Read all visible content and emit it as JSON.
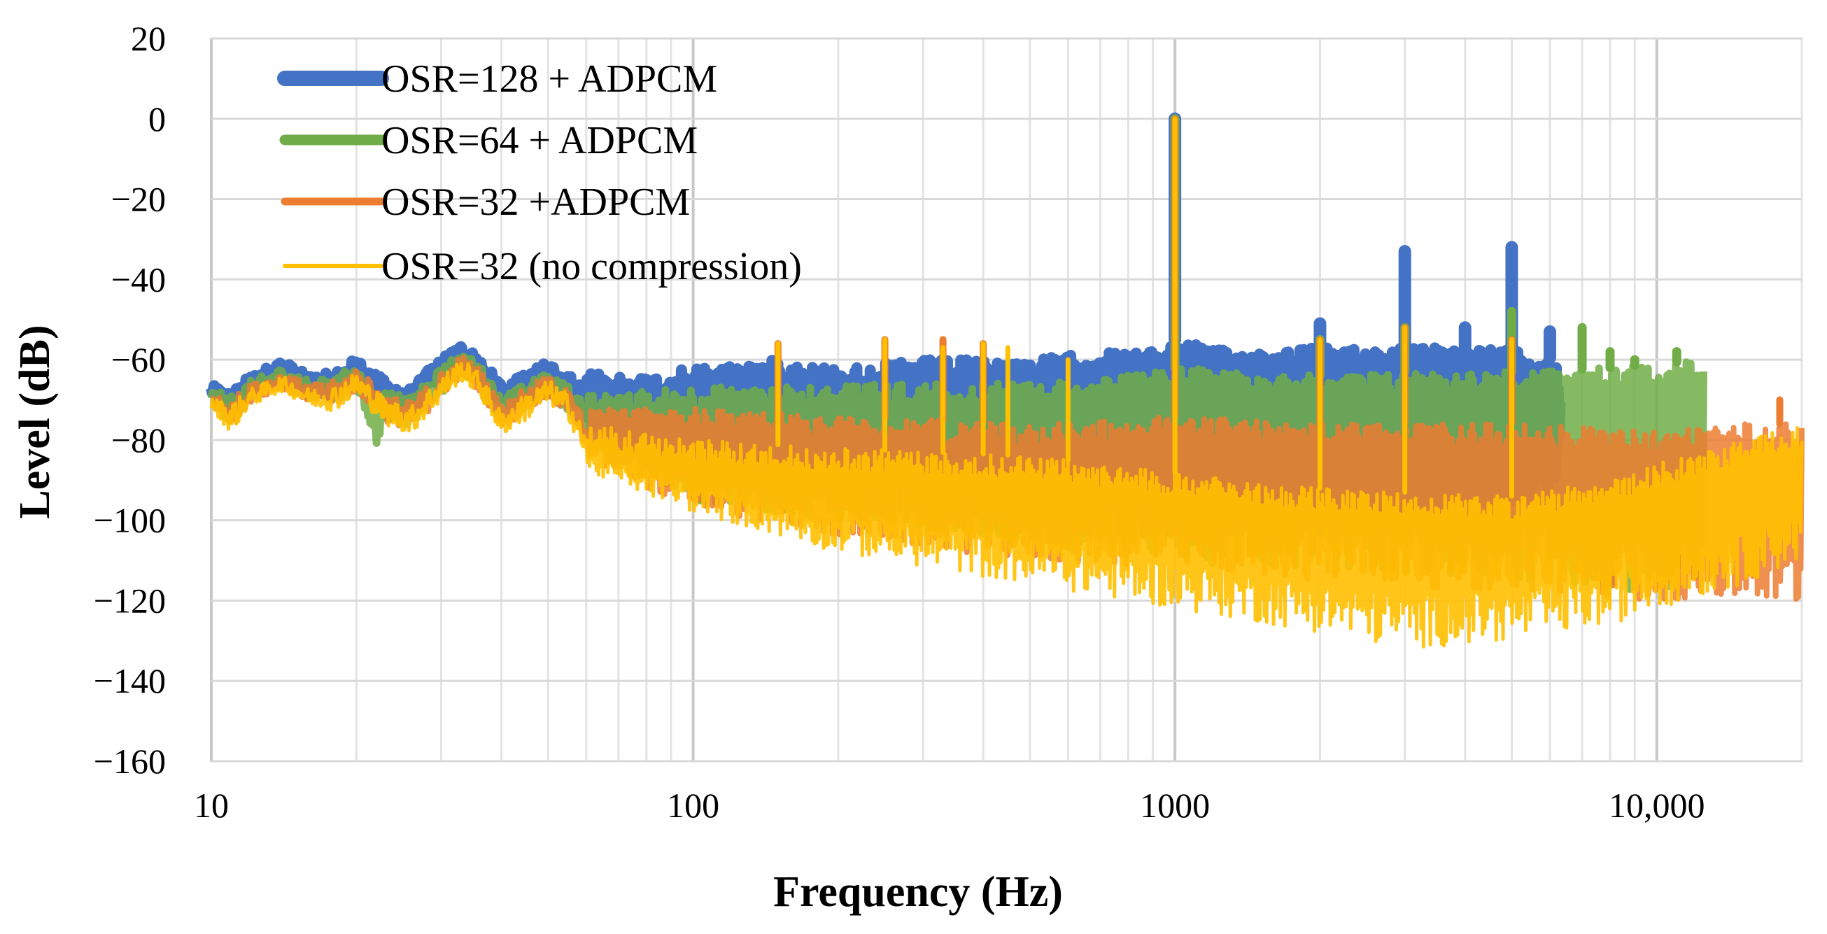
{
  "chart_data": {
    "type": "line",
    "title": "",
    "xlabel": "Frequency (Hz)",
    "ylabel": "Level (dB)",
    "xscale": "log",
    "xlim": [
      10,
      20000
    ],
    "ylim": [
      -160,
      20
    ],
    "x_ticks": [
      10,
      100,
      1000,
      10000
    ],
    "x_tick_labels": [
      "10",
      "100",
      "1000",
      "10,000"
    ],
    "y_ticks": [
      20,
      0,
      -20,
      -40,
      -60,
      -80,
      -100,
      -120,
      -140,
      -160
    ],
    "y_tick_labels": [
      "20",
      "0",
      "−20",
      "−40",
      "−60",
      "−80",
      "−100",
      "−120",
      "−140",
      "−160"
    ],
    "grid": true,
    "legend_position": "top-left",
    "series": [
      {
        "name": "OSR=128 + ADPCM",
        "color": "#4472C4",
        "envelope_upper": [
          [
            10,
            -65
          ],
          [
            11,
            -64
          ],
          [
            12,
            -62
          ],
          [
            14,
            -58
          ],
          [
            16,
            -62
          ],
          [
            18,
            -60
          ],
          [
            20,
            -57
          ],
          [
            23,
            -62
          ],
          [
            26,
            -64
          ],
          [
            29,
            -58
          ],
          [
            33,
            -53
          ],
          [
            36,
            -56
          ],
          [
            40,
            -63
          ],
          [
            46,
            -60
          ],
          [
            50,
            -57
          ],
          [
            55,
            -60
          ],
          [
            60,
            -63
          ],
          [
            80,
            -64
          ],
          [
            100,
            -62
          ],
          [
            150,
            -60
          ],
          [
            200,
            -62
          ],
          [
            300,
            -60
          ],
          [
            500,
            -60
          ],
          [
            700,
            -58
          ],
          [
            900,
            -58
          ],
          [
            1000,
            -55
          ],
          [
            1300,
            -58
          ],
          [
            1800,
            -57
          ],
          [
            2500,
            -57
          ],
          [
            3500,
            -57
          ],
          [
            5000,
            -57
          ],
          [
            6200,
            -60
          ],
          [
            6300,
            -66
          ]
        ],
        "envelope_lower": [
          [
            10,
            -70
          ],
          [
            11,
            -79
          ],
          [
            12,
            -70
          ],
          [
            14,
            -66
          ],
          [
            16,
            -70
          ],
          [
            18,
            -72
          ],
          [
            20,
            -67
          ],
          [
            23,
            -75
          ],
          [
            26,
            -76
          ],
          [
            29,
            -70
          ],
          [
            33,
            -64
          ],
          [
            36,
            -68
          ],
          [
            40,
            -76
          ],
          [
            46,
            -72
          ],
          [
            50,
            -70
          ],
          [
            55,
            -73
          ],
          [
            60,
            -76
          ],
          [
            80,
            -86
          ],
          [
            100,
            -90
          ],
          [
            150,
            -92
          ],
          [
            200,
            -96
          ],
          [
            300,
            -100
          ],
          [
            500,
            -103
          ],
          [
            700,
            -104
          ],
          [
            1000,
            -104
          ],
          [
            1500,
            -104
          ],
          [
            2000,
            -104
          ],
          [
            3000,
            -102
          ],
          [
            4000,
            -98
          ],
          [
            5000,
            -96
          ],
          [
            6200,
            -95
          ],
          [
            6300,
            -80
          ]
        ],
        "peaks": [
          [
            1000,
            0
          ],
          [
            2000,
            -51
          ],
          [
            3000,
            -33
          ],
          [
            4000,
            -52
          ],
          [
            5000,
            -32
          ],
          [
            6000,
            -53
          ]
        ]
      },
      {
        "name": "OSR=64 + ADPCM",
        "color": "#70AD47",
        "envelope_upper": [
          [
            10,
            -66
          ],
          [
            11,
            -65
          ],
          [
            12,
            -63
          ],
          [
            14,
            -60
          ],
          [
            16,
            -63
          ],
          [
            18,
            -61
          ],
          [
            20,
            -58
          ],
          [
            23,
            -64
          ],
          [
            26,
            -66
          ],
          [
            29,
            -60
          ],
          [
            33,
            -55
          ],
          [
            36,
            -58
          ],
          [
            40,
            -66
          ],
          [
            46,
            -62
          ],
          [
            50,
            -60
          ],
          [
            55,
            -63
          ],
          [
            60,
            -68
          ],
          [
            100,
            -67
          ],
          [
            200,
            -66
          ],
          [
            400,
            -66
          ],
          [
            700,
            -65
          ],
          [
            1000,
            -62
          ],
          [
            2000,
            -64
          ],
          [
            3000,
            -63
          ],
          [
            5000,
            -63
          ],
          [
            8000,
            -62
          ],
          [
            10000,
            -61
          ],
          [
            12500,
            -60
          ]
        ],
        "envelope_lower": [
          [
            10,
            -72
          ],
          [
            11,
            -80
          ],
          [
            12,
            -72
          ],
          [
            14,
            -68
          ],
          [
            16,
            -72
          ],
          [
            18,
            -74
          ],
          [
            20,
            -70
          ],
          [
            22,
            -88
          ],
          [
            23,
            -78
          ],
          [
            26,
            -80
          ],
          [
            29,
            -74
          ],
          [
            33,
            -66
          ],
          [
            36,
            -70
          ],
          [
            40,
            -78
          ],
          [
            46,
            -75
          ],
          [
            50,
            -72
          ],
          [
            55,
            -76
          ],
          [
            60,
            -82
          ],
          [
            100,
            -95
          ],
          [
            200,
            -100
          ],
          [
            400,
            -104
          ],
          [
            700,
            -108
          ],
          [
            1000,
            -110
          ],
          [
            2000,
            -113
          ],
          [
            4000,
            -114
          ],
          [
            7000,
            -116
          ],
          [
            10000,
            -118
          ],
          [
            12500,
            -118
          ]
        ],
        "peaks": [
          [
            1000,
            0
          ],
          [
            2000,
            -55
          ],
          [
            3000,
            -52
          ],
          [
            5000,
            -48
          ],
          [
            7000,
            -52
          ],
          [
            8000,
            -58
          ],
          [
            9000,
            -60
          ],
          [
            11000,
            -58
          ]
        ]
      },
      {
        "name": "OSR=32 +ADPCM",
        "color": "#ED7D31",
        "envelope_upper": [
          [
            10,
            -67
          ],
          [
            11,
            -66
          ],
          [
            12,
            -64
          ],
          [
            14,
            -61
          ],
          [
            16,
            -64
          ],
          [
            18,
            -62
          ],
          [
            20,
            -59
          ],
          [
            23,
            -65
          ],
          [
            26,
            -67
          ],
          [
            29,
            -61
          ],
          [
            33,
            -56
          ],
          [
            36,
            -59
          ],
          [
            40,
            -68
          ],
          [
            46,
            -63
          ],
          [
            50,
            -61
          ],
          [
            55,
            -64
          ],
          [
            60,
            -72
          ],
          [
            100,
            -72
          ],
          [
            200,
            -74
          ],
          [
            500,
            -76
          ],
          [
            1000,
            -74
          ],
          [
            2000,
            -76
          ],
          [
            5000,
            -76
          ],
          [
            10000,
            -78
          ],
          [
            15000,
            -76
          ],
          [
            20000,
            -76
          ]
        ],
        "envelope_lower": [
          [
            10,
            -73
          ],
          [
            11,
            -81
          ],
          [
            12,
            -73
          ],
          [
            14,
            -69
          ],
          [
            16,
            -73
          ],
          [
            18,
            -75
          ],
          [
            20,
            -71
          ],
          [
            23,
            -79
          ],
          [
            26,
            -81
          ],
          [
            29,
            -75
          ],
          [
            33,
            -67
          ],
          [
            36,
            -71
          ],
          [
            40,
            -80
          ],
          [
            46,
            -76
          ],
          [
            50,
            -73
          ],
          [
            55,
            -77
          ],
          [
            60,
            -85
          ],
          [
            100,
            -97
          ],
          [
            200,
            -104
          ],
          [
            500,
            -110
          ],
          [
            1000,
            -112
          ],
          [
            2000,
            -115
          ],
          [
            5000,
            -118
          ],
          [
            10000,
            -120
          ],
          [
            15000,
            -120
          ],
          [
            20000,
            -122
          ]
        ],
        "peaks": [
          [
            150,
            -56
          ],
          [
            250,
            -55
          ],
          [
            330,
            -55
          ],
          [
            400,
            -56
          ],
          [
            1000,
            0
          ],
          [
            2000,
            -55
          ],
          [
            3000,
            -52
          ],
          [
            5000,
            -55
          ],
          [
            18000,
            -70
          ]
        ]
      },
      {
        "name": "OSR=32 (no compression)",
        "color": "#FFC000",
        "envelope_upper": [
          [
            10,
            -68
          ],
          [
            11,
            -67
          ],
          [
            12,
            -65
          ],
          [
            14,
            -62
          ],
          [
            16,
            -65
          ],
          [
            18,
            -63
          ],
          [
            20,
            -60
          ],
          [
            23,
            -66
          ],
          [
            26,
            -68
          ],
          [
            29,
            -62
          ],
          [
            33,
            -57
          ],
          [
            36,
            -60
          ],
          [
            40,
            -70
          ],
          [
            46,
            -64
          ],
          [
            50,
            -62
          ],
          [
            55,
            -65
          ],
          [
            60,
            -76
          ],
          [
            100,
            -80
          ],
          [
            200,
            -82
          ],
          [
            500,
            -84
          ],
          [
            1000,
            -88
          ],
          [
            2000,
            -92
          ],
          [
            3000,
            -93
          ],
          [
            5000,
            -94
          ],
          [
            8000,
            -90
          ],
          [
            10000,
            -86
          ],
          [
            15000,
            -80
          ],
          [
            20000,
            -76
          ]
        ],
        "envelope_lower": [
          [
            10,
            -74
          ],
          [
            11,
            -82
          ],
          [
            12,
            -74
          ],
          [
            14,
            -70
          ],
          [
            16,
            -74
          ],
          [
            18,
            -76
          ],
          [
            20,
            -72
          ],
          [
            23,
            -80
          ],
          [
            26,
            -82
          ],
          [
            29,
            -76
          ],
          [
            33,
            -68
          ],
          [
            36,
            -72
          ],
          [
            40,
            -82
          ],
          [
            46,
            -78
          ],
          [
            50,
            -74
          ],
          [
            55,
            -78
          ],
          [
            60,
            -88
          ],
          [
            100,
            -98
          ],
          [
            200,
            -108
          ],
          [
            500,
            -116
          ],
          [
            1000,
            -122
          ],
          [
            2000,
            -128
          ],
          [
            3000,
            -132
          ],
          [
            5000,
            -130
          ],
          [
            8000,
            -126
          ],
          [
            10000,
            -122
          ],
          [
            15000,
            -116
          ],
          [
            20000,
            -110
          ]
        ],
        "peaks": [
          [
            150,
            -56
          ],
          [
            250,
            -55
          ],
          [
            330,
            -57
          ],
          [
            400,
            -56
          ],
          [
            450,
            -57
          ],
          [
            600,
            -60
          ],
          [
            1000,
            0
          ],
          [
            2000,
            -55
          ],
          [
            3000,
            -52
          ],
          [
            5000,
            -55
          ]
        ]
      }
    ]
  }
}
